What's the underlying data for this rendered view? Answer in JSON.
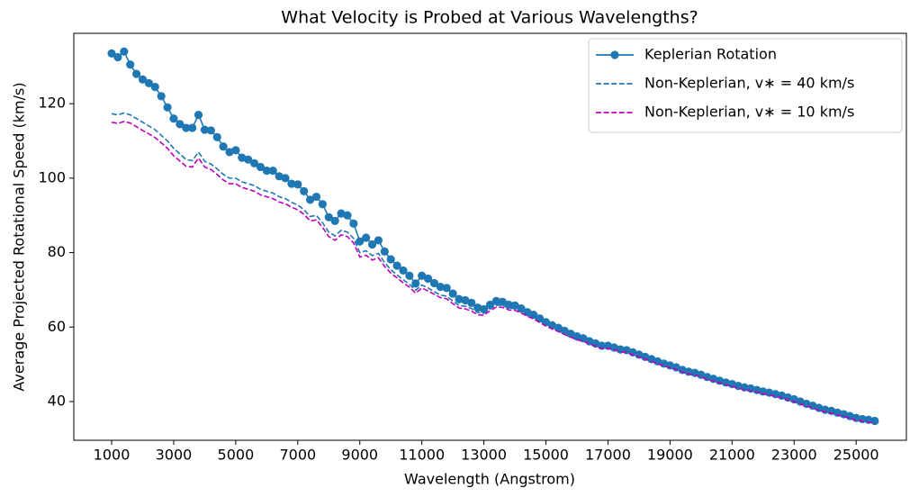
{
  "chart_data": {
    "type": "line",
    "title": "What Velocity is Probed at Various Wavelengths?",
    "x_label": "Wavelength (Angstrom)",
    "y_label": "Average Projected Rotational Speed (km/s)",
    "x": [
      1000,
      1200,
      1400,
      1600,
      1800,
      2000,
      2200,
      2400,
      2600,
      2800,
      3000,
      3200,
      3400,
      3600,
      3800,
      4000,
      4200,
      4400,
      4600,
      4800,
      5000,
      5200,
      5400,
      5600,
      5800,
      6000,
      6200,
      6400,
      6600,
      6800,
      7000,
      7200,
      7400,
      7600,
      7800,
      8000,
      8200,
      8400,
      8600,
      8800,
      9000,
      9200,
      9400,
      9600,
      9800,
      10000,
      10200,
      10400,
      10600,
      10800,
      11000,
      11200,
      11400,
      11600,
      11800,
      12000,
      12200,
      12400,
      12600,
      12800,
      13000,
      13200,
      13400,
      13600,
      13800,
      14000,
      14200,
      14400,
      14600,
      14800,
      15000,
      15200,
      15400,
      15600,
      15800,
      16000,
      16200,
      16400,
      16600,
      16800,
      17000,
      17200,
      17400,
      17600,
      17800,
      18000,
      18200,
      18400,
      18600,
      18800,
      19000,
      19200,
      19400,
      19600,
      19800,
      20000,
      20200,
      20400,
      20600,
      20800,
      21000,
      21200,
      21400,
      21600,
      21800,
      22000,
      22200,
      22400,
      22600,
      22800,
      23000,
      23200,
      23400,
      23600,
      23800,
      24000,
      24200,
      24400,
      24600,
      24800,
      25000,
      25200,
      25400,
      25600
    ],
    "series": [
      {
        "name": "Keplerian Rotation",
        "color": "#1f77b4",
        "style": "solid",
        "marker": "circle",
        "values": [
          133.5,
          132.5,
          134,
          130.5,
          128,
          126.5,
          125.5,
          124.5,
          122,
          119,
          116,
          114.5,
          113.5,
          113.5,
          117,
          113,
          112.8,
          111,
          108.5,
          107,
          107.5,
          105.5,
          105,
          104,
          103,
          102,
          102,
          100.5,
          100,
          98.5,
          98.3,
          96.5,
          94.2,
          95,
          93,
          89.5,
          88.5,
          90.5,
          90,
          87.8,
          83,
          84,
          82.2,
          83.3,
          80.3,
          78.2,
          76.5,
          75.2,
          73.8,
          71.7,
          73.8,
          73,
          71.8,
          70.8,
          70.5,
          69,
          67.5,
          67.2,
          66.5,
          65.2,
          64.8,
          66,
          67,
          66.8,
          66,
          65.8,
          65,
          64,
          63.3,
          62.3,
          61.3,
          60.5,
          59.8,
          59,
          58.2,
          57.5,
          57,
          56.2,
          55.6,
          55,
          55,
          54.5,
          54,
          53.8,
          53.2,
          52.6,
          52,
          51.4,
          50.8,
          50.2,
          49.7,
          49.2,
          48.5,
          48,
          47.7,
          47.2,
          46.6,
          46.1,
          45.6,
          45.1,
          44.7,
          44.2,
          43.8,
          43.5,
          43.1,
          42.7,
          42.4,
          42,
          41.6,
          41.1,
          40.6,
          40,
          39.4,
          38.9,
          38.3,
          37.8,
          37.5,
          37,
          36.6,
          36.1,
          35.6,
          35.3,
          35.1,
          34.8
        ]
      },
      {
        "name": "Non-Keplerian, v∗ = 40 km/s",
        "color": "#1f77b4",
        "style": "dashed",
        "values": [
          117.3,
          117,
          117.5,
          117,
          116,
          115,
          114,
          113,
          111.5,
          110,
          108,
          106.5,
          105,
          104.7,
          107,
          104.5,
          103.8,
          102.5,
          101,
          100,
          100,
          99,
          98.5,
          98,
          97,
          96.5,
          96,
          95,
          94.5,
          93.5,
          92.8,
          91.5,
          89.7,
          90,
          88,
          85.5,
          84.5,
          86,
          85.5,
          83.8,
          80,
          80.5,
          79.2,
          79.8,
          77.3,
          75.4,
          74,
          72.7,
          71.5,
          69.9,
          71.3,
          70.5,
          69.5,
          68.6,
          68.3,
          67,
          65.8,
          65.6,
          65,
          63.9,
          63.7,
          64.9,
          65.9,
          65.8,
          65.1,
          65,
          64.3,
          63.3,
          62.7,
          61.7,
          60.8,
          60,
          59.3,
          58.5,
          57.8,
          57.1,
          56.6,
          55.9,
          55.3,
          54.7,
          54.7,
          54.2,
          53.7,
          53.5,
          52.9,
          52.3,
          51.7,
          51.1,
          50.5,
          49.9,
          49.4,
          48.9,
          48.2,
          47.7,
          47.4,
          46.9,
          46.3,
          45.8,
          45.3,
          44.8,
          44.4,
          43.9,
          43.5,
          43.2,
          42.8,
          42.4,
          42.1,
          41.7,
          41.3,
          40.8,
          40.3,
          39.7,
          39.1,
          38.6,
          38,
          37.5,
          37.2,
          36.7,
          36.3,
          35.8,
          35.3,
          35,
          34.8,
          34.5
        ]
      },
      {
        "name": "Non-Keplerian, v∗ = 10 km/s",
        "color": "#bf00bf",
        "style": "dashed",
        "values": [
          115,
          114.7,
          115.2,
          114.8,
          113.8,
          112.8,
          111.9,
          110.9,
          109.5,
          108,
          106,
          104.6,
          103.2,
          103,
          105.4,
          103,
          102.3,
          101,
          99.5,
          98.5,
          98.5,
          97.5,
          97,
          96.5,
          95.5,
          95,
          94.5,
          93.6,
          93.1,
          92.2,
          91.5,
          90.3,
          88.5,
          88.8,
          86.8,
          84.3,
          83.3,
          84.8,
          84.3,
          82.6,
          78.8,
          79.3,
          78,
          78.6,
          76.3,
          74.5,
          73.2,
          71.9,
          70.7,
          69.1,
          70.5,
          69.7,
          68.8,
          67.9,
          67.6,
          66.3,
          65.1,
          64.9,
          64.3,
          63.3,
          63.2,
          64.4,
          65.4,
          65.3,
          64.6,
          64.5,
          63.8,
          62.9,
          62.2,
          61.2,
          60.3,
          59.5,
          58.8,
          58,
          57.3,
          56.6,
          56.2,
          55.5,
          54.9,
          54.3,
          54.3,
          53.9,
          53.4,
          53.2,
          52.6,
          52,
          51.4,
          50.8,
          50.2,
          49.6,
          49.1,
          48.6,
          47.9,
          47.4,
          47.1,
          46.6,
          46,
          45.5,
          45,
          44.5,
          44.1,
          43.6,
          43.2,
          42.9,
          42.5,
          42.1,
          41.8,
          41.4,
          41,
          40.5,
          40,
          39.4,
          38.8,
          38.3,
          37.7,
          37.2,
          36.9,
          36.4,
          36,
          35.5,
          35,
          34.7,
          34.5,
          34.2
        ]
      }
    ],
    "xlim": [
      -220,
      26620
    ],
    "ylim": [
      29.6,
      138.9
    ],
    "xticks": [
      1000,
      3000,
      5000,
      7000,
      9000,
      11000,
      13000,
      15000,
      17000,
      19000,
      21000,
      23000,
      25000
    ],
    "yticks": [
      40,
      60,
      80,
      100,
      120
    ],
    "legend": "upper right",
    "grid": false
  }
}
